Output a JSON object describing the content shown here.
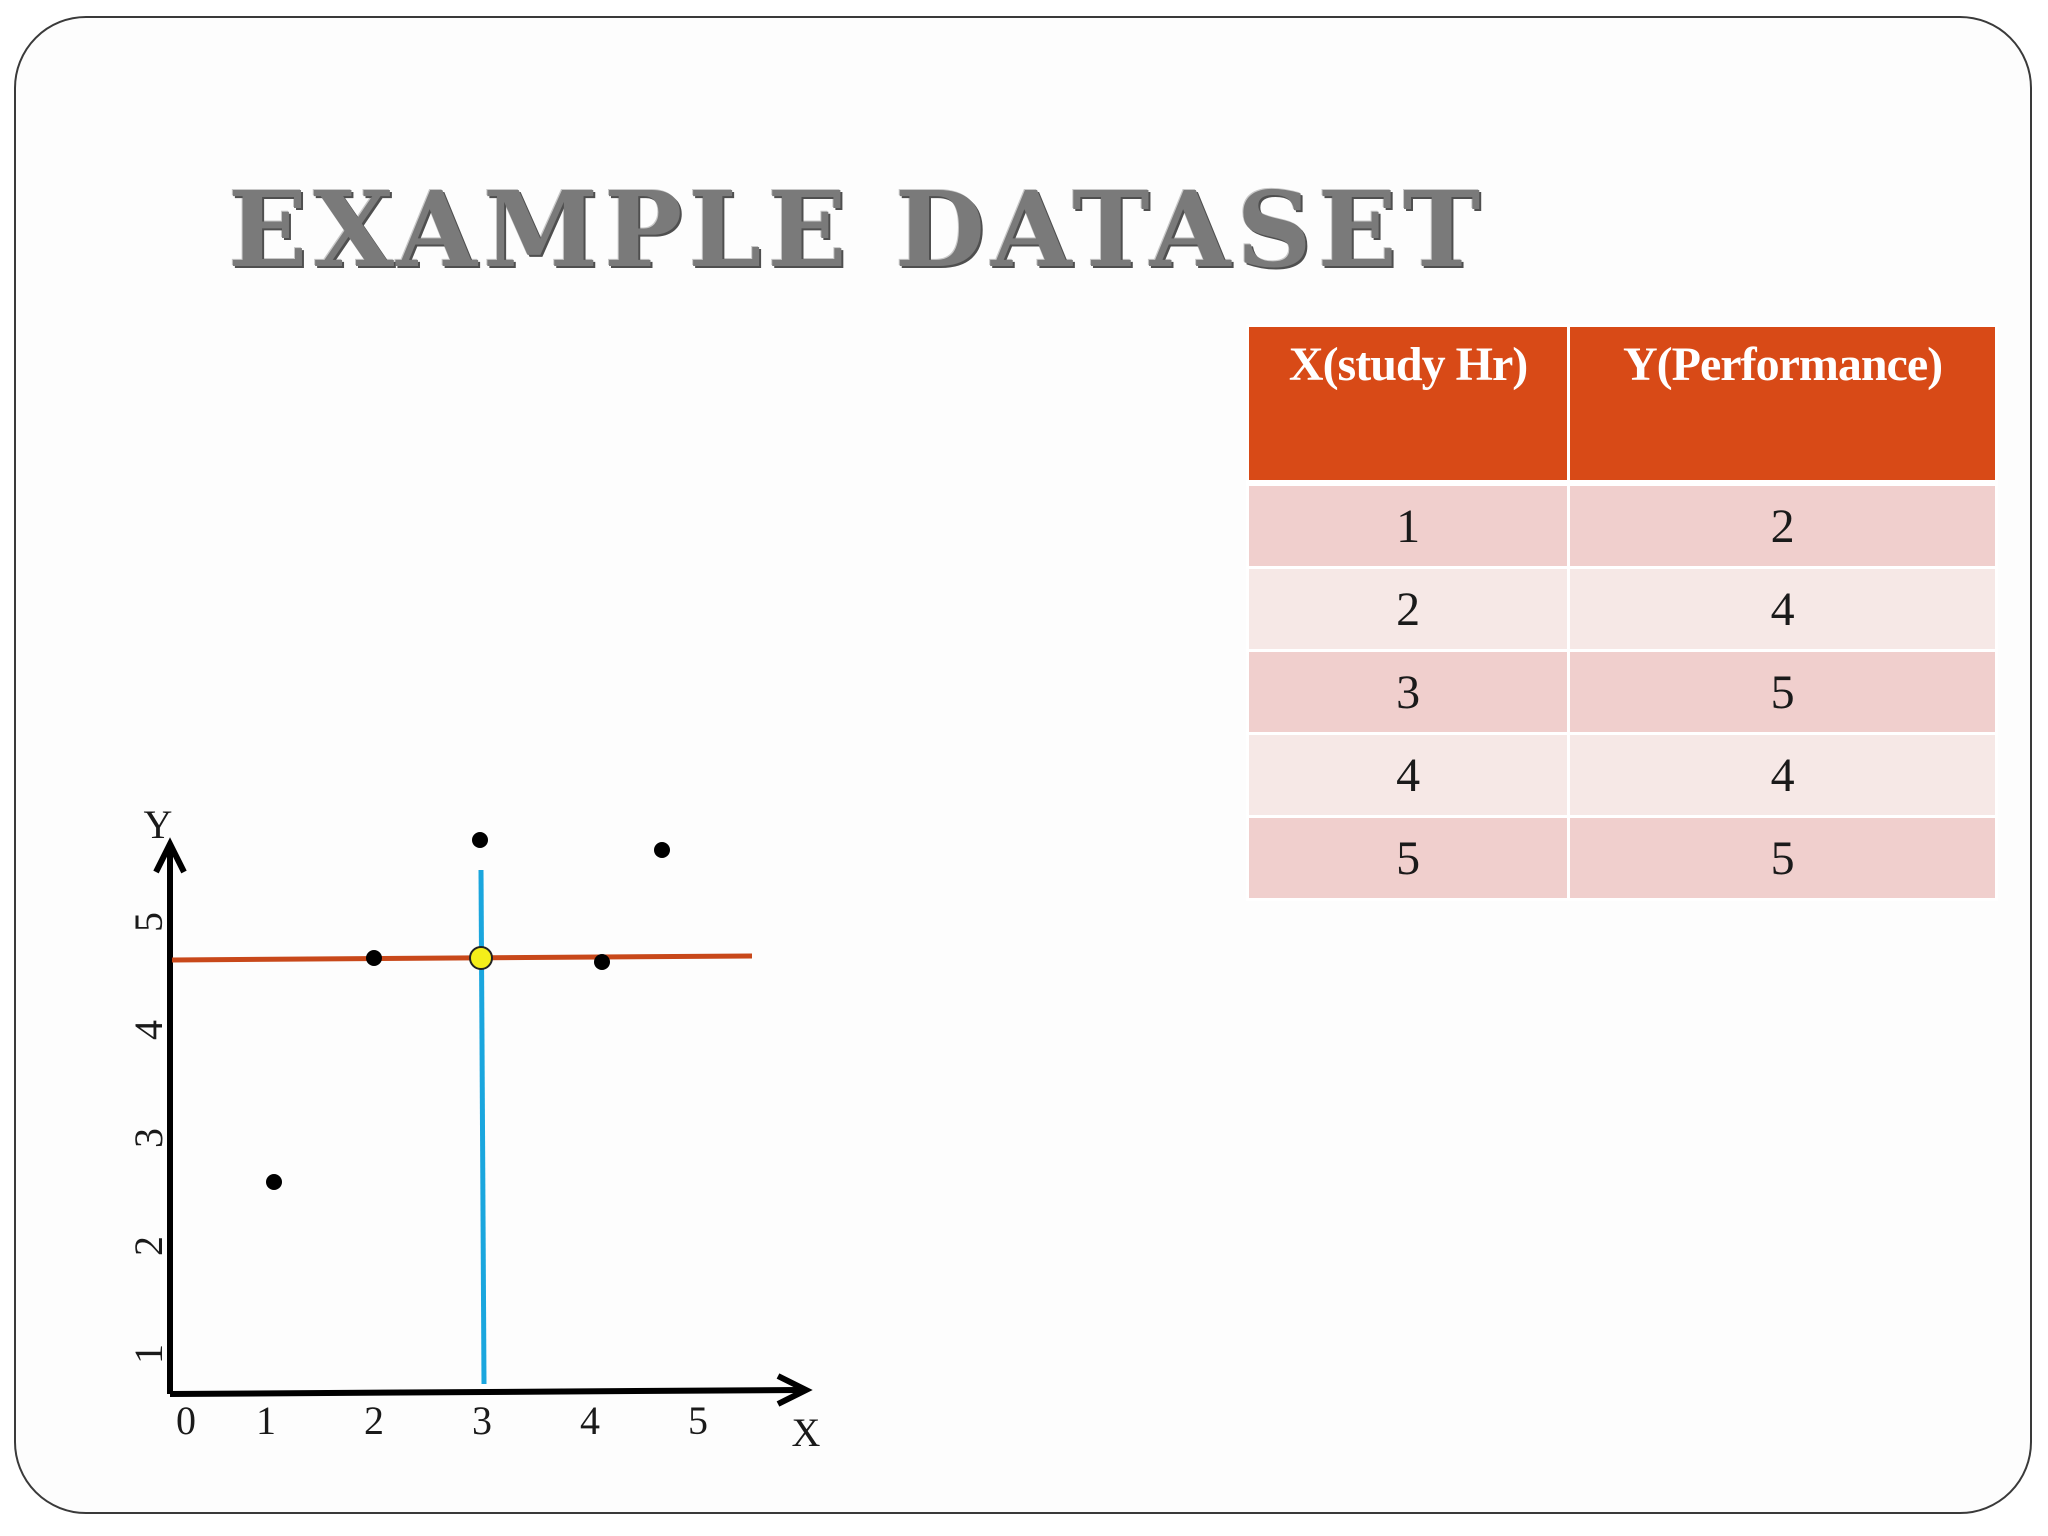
{
  "slide": {
    "title": "EXAMPLE DATASET"
  },
  "table": {
    "headers": [
      "X(study Hr)",
      "Y(Performance)"
    ],
    "rows": [
      [
        "1",
        "2"
      ],
      [
        "2",
        "4"
      ],
      [
        "3",
        "5"
      ],
      [
        "4",
        "4"
      ],
      [
        "5",
        "5"
      ]
    ]
  },
  "colors": {
    "header_bg": "#d84a17",
    "row_odd": "#f0cfcd",
    "row_even": "#f6e8e6",
    "mean_y_line": "#c8481a",
    "mean_x_line": "#1aa6de",
    "mean_point": "#f5ee1a"
  },
  "chart_data": {
    "type": "scatter",
    "xlabel": "X",
    "ylabel": "Y",
    "x_ticks": [
      "0",
      "1",
      "2",
      "3",
      "4",
      "5"
    ],
    "y_ticks": [
      "1",
      "2",
      "3",
      "4",
      "5"
    ],
    "xlim": [
      0,
      5.5
    ],
    "ylim": [
      0,
      5.5
    ],
    "points": [
      {
        "x": 1,
        "y": 2
      },
      {
        "x": 2,
        "y": 4
      },
      {
        "x": 3,
        "y": 5
      },
      {
        "x": 4,
        "y": 4
      },
      {
        "x": 5,
        "y": 5
      }
    ],
    "mean_point": {
      "x": 3,
      "y": 4
    },
    "reference_lines": [
      {
        "orientation": "horizontal",
        "value": 4
      },
      {
        "orientation": "vertical",
        "value": 3
      }
    ],
    "grid": false
  }
}
